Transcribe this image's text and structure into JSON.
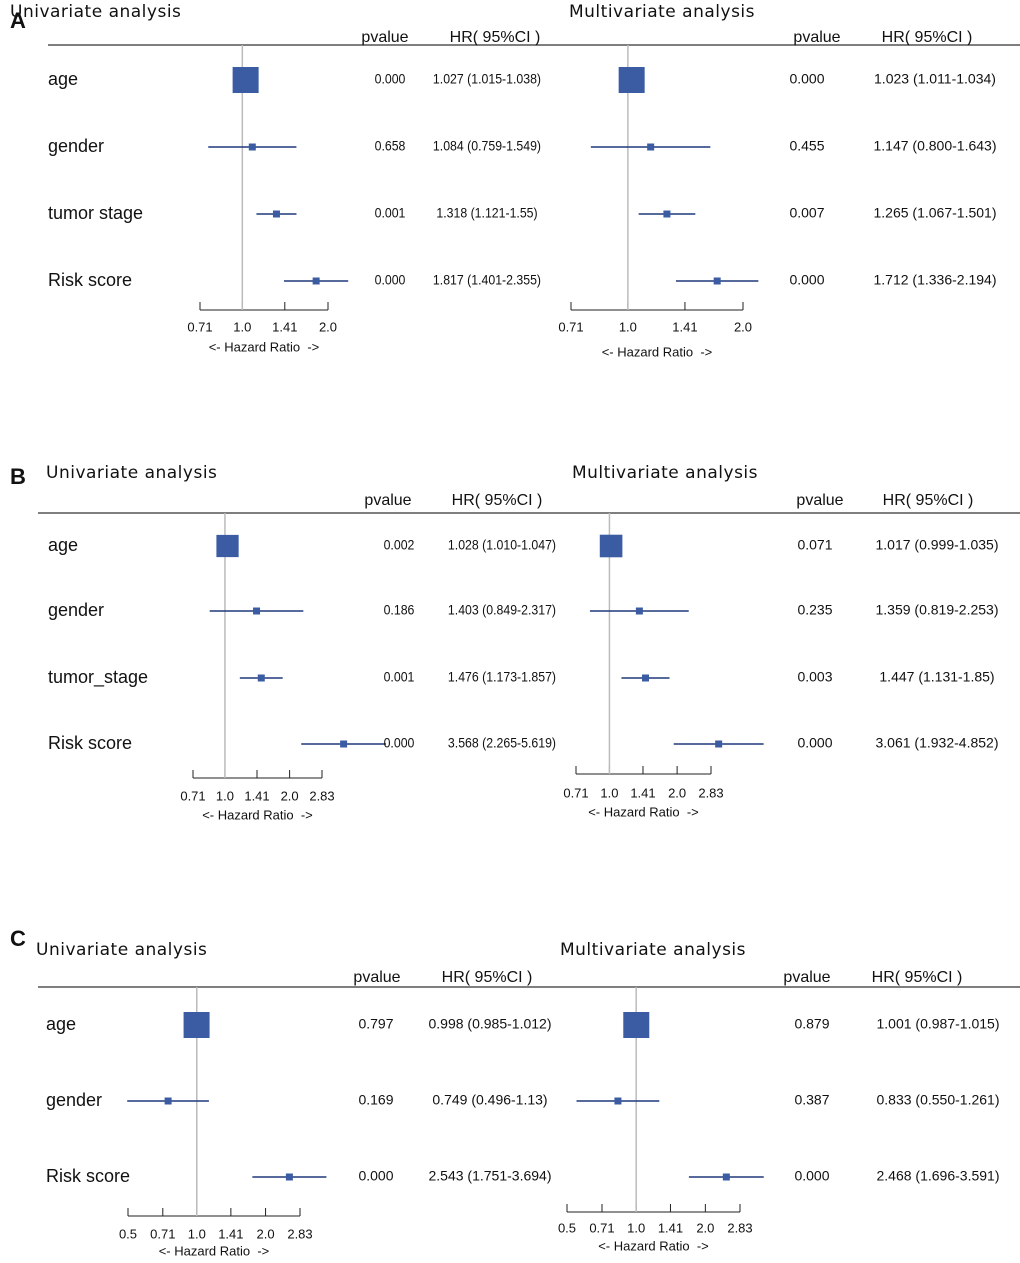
{
  "chart_data": [
    {
      "type": "forest",
      "panel": "A",
      "categories": [
        "age",
        "gender",
        "tumor stage",
        "Risk score"
      ],
      "columns": [
        "pvalue",
        "HR( 95%CI )"
      ],
      "xlabel": "<- Hazard Ratio  ->",
      "log_scale": true,
      "color": "#3b5ca3",
      "series": [
        {
          "name": "Univariate analysis",
          "values": [
            1.027,
            1.084,
            1.318,
            1.817
          ],
          "lower": [
            1.015,
            0.759,
            1.121,
            1.401
          ],
          "upper": [
            1.038,
            1.549,
            1.55,
            2.355
          ],
          "pvalues": [
            "0.000",
            "0.658",
            "0.001",
            "0.000"
          ],
          "value_labels": [
            "1.027 (1.015-1.038)",
            "1.084 (0.759-1.549)",
            "1.318 (1.121-1.55)",
            "1.817 (1.401-2.355)"
          ],
          "xlim": [
            0.71,
            2
          ],
          "xticks": [
            0.71,
            {
              "value": 1,
              "label": "1.0"
            },
            1.41,
            {
              "value": 2,
              "label": "2.0"
            }
          ]
        },
        {
          "name": "Multivariate analysis",
          "values": [
            1.023,
            1.147,
            1.265,
            1.712
          ],
          "lower": [
            1.011,
            0.8,
            1.067,
            1.336
          ],
          "upper": [
            1.034,
            1.643,
            1.501,
            2.194
          ],
          "pvalues": [
            "0.000",
            "0.455",
            "0.007",
            "0.000"
          ],
          "value_labels": [
            "1.023 (1.011-1.034)",
            "1.147 (0.800-1.643)",
            "1.265 (1.067-1.501)",
            "1.712 (1.336-2.194)"
          ],
          "xlim": [
            0.71,
            2
          ],
          "xticks": [
            0.71,
            {
              "value": 1,
              "label": "1.0"
            },
            1.41,
            {
              "value": 2,
              "label": "2.0"
            }
          ]
        }
      ]
    },
    {
      "type": "forest",
      "panel": "B",
      "categories": [
        "age",
        "gender",
        "tumor_stage",
        "Risk score"
      ],
      "columns": [
        "pvalue",
        "HR( 95%CI )"
      ],
      "xlabel": "<- Hazard Ratio  ->",
      "log_scale": true,
      "color": "#3b5ca3",
      "series": [
        {
          "name": "Univariate analysis",
          "values": [
            1.028,
            1.403,
            1.476,
            3.568
          ],
          "lower": [
            1.01,
            0.849,
            1.173,
            2.265
          ],
          "upper": [
            1.047,
            2.317,
            1.857,
            5.619
          ],
          "pvalues": [
            "0.002",
            "0.186",
            "0.001",
            "0.000"
          ],
          "value_labels": [
            "1.028 (1.010-1.047)",
            "1.403 (0.849-2.317)",
            "1.476 (1.173-1.857)",
            "3.568 (2.265-5.619)"
          ],
          "xlim": [
            0.71,
            2.83
          ],
          "xticks": [
            0.71,
            {
              "value": 1,
              "label": "1.0"
            },
            1.41,
            {
              "value": 2,
              "label": "2.0"
            },
            2.83
          ]
        },
        {
          "name": "Multivariate analysis",
          "values": [
            1.017,
            1.359,
            1.447,
            3.061
          ],
          "lower": [
            0.999,
            0.819,
            1.131,
            1.932
          ],
          "upper": [
            1.035,
            2.253,
            1.85,
            4.852
          ],
          "pvalues": [
            "0.071",
            "0.235",
            "0.003",
            "0.000"
          ],
          "value_labels": [
            "1.017 (0.999-1.035)",
            "1.359 (0.819-2.253)",
            "1.447 (1.131-1.85)",
            "3.061 (1.932-4.852)"
          ],
          "xlim": [
            0.71,
            2.83
          ],
          "xticks": [
            0.71,
            {
              "value": 1,
              "label": "1.0"
            },
            1.41,
            {
              "value": 2,
              "label": "2.0"
            },
            2.83
          ]
        }
      ]
    },
    {
      "type": "forest",
      "panel": "C",
      "categories": [
        "age",
        "gender",
        "Risk score"
      ],
      "columns": [
        "pvalue",
        "HR( 95%CI )"
      ],
      "xlabel": "<- Hazard Ratio  ->",
      "log_scale": true,
      "color": "#3b5ca3",
      "series": [
        {
          "name": "Univariate analysis",
          "values": [
            0.998,
            0.749,
            2.543
          ],
          "lower": [
            0.985,
            0.496,
            1.751
          ],
          "upper": [
            1.012,
            1.13,
            3.694
          ],
          "pvalues": [
            "0.797",
            "0.169",
            "0.000"
          ],
          "value_labels": [
            "0.998 (0.985-1.012)",
            "0.749 (0.496-1.13)",
            "2.543 (1.751-3.694)"
          ],
          "xlim": [
            0.5,
            2.83
          ],
          "xticks": [
            0.5,
            0.71,
            {
              "value": 1,
              "label": "1.0"
            },
            1.41,
            {
              "value": 2,
              "label": "2.0"
            },
            2.83
          ]
        },
        {
          "name": "Multivariate analysis",
          "values": [
            1.001,
            0.833,
            2.468
          ],
          "lower": [
            0.987,
            0.55,
            1.696
          ],
          "upper": [
            1.015,
            1.261,
            3.591
          ],
          "pvalues": [
            "0.879",
            "0.387",
            "0.000"
          ],
          "value_labels": [
            "1.001 (0.987-1.015)",
            "0.833 (0.550-1.261)",
            "2.468 (1.696-3.591)"
          ],
          "xlim": [
            0.5,
            2.83
          ],
          "xticks": [
            0.5,
            0.71,
            {
              "value": 1,
              "label": "1.0"
            },
            1.41,
            {
              "value": 2,
              "label": "2.0"
            },
            2.83
          ]
        }
      ]
    }
  ]
}
